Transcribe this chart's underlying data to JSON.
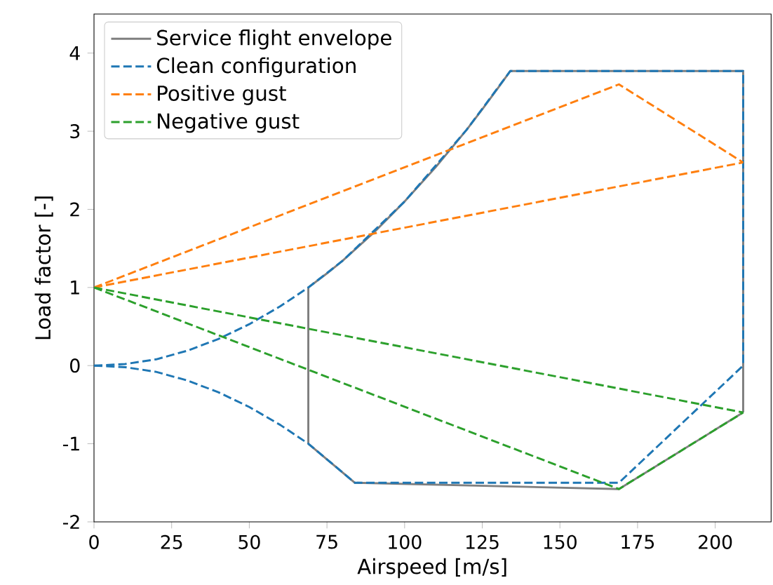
{
  "chart_data": {
    "type": "line",
    "xlabel": "Airspeed [m/s]",
    "ylabel": "Load factor [-]",
    "xlim": [
      0,
      218
    ],
    "ylim": [
      -2,
      4.5
    ],
    "xticks": [
      0,
      25,
      50,
      75,
      100,
      125,
      150,
      175,
      200
    ],
    "yticks": [
      -2,
      -1,
      0,
      1,
      2,
      3,
      4
    ],
    "grid": false,
    "legend": "top left",
    "marker": "none",
    "series": [
      {
        "name": "Service flight envelope",
        "color": "#7f7f7f",
        "line_style": "solid",
        "x": [
          69,
          69,
          75,
          80,
          85,
          90,
          95,
          100,
          105,
          110,
          115,
          120,
          125,
          130,
          134,
          209,
          209
        ],
        "values": [
          -1,
          1,
          1.18,
          1.34,
          1.52,
          1.7,
          1.9,
          2.1,
          2.32,
          2.54,
          2.78,
          3.02,
          3.28,
          3.55,
          3.77,
          3.77,
          -0.6
        ]
      },
      {
        "color": "#7f7f7f",
        "line_style": "solid",
        "x": [
          69,
          84,
          169,
          209
        ],
        "values": [
          -1,
          -1.5,
          -1.58,
          -0.6
        ]
      },
      {
        "name": "Clean configuration",
        "color": "#1f77b4",
        "line_style": "dashed",
        "x": [
          0,
          10,
          20,
          30,
          40,
          50,
          60,
          69,
          80,
          100,
          120,
          134,
          209,
          209
        ],
        "values": [
          0,
          0.02,
          0.08,
          0.19,
          0.34,
          0.53,
          0.76,
          1,
          1.34,
          2.1,
          3.02,
          3.77,
          3.77,
          0
        ]
      },
      {
        "color": "#1f77b4",
        "line_style": "dashed",
        "x": [
          0,
          10,
          20,
          30,
          40,
          50,
          60,
          69,
          84,
          169,
          209
        ],
        "values": [
          0,
          -0.02,
          -0.08,
          -0.19,
          -0.34,
          -0.53,
          -0.76,
          -1,
          -1.5,
          -1.5,
          0
        ]
      },
      {
        "name": "Positive gust",
        "color": "#ff7f0e",
        "line_style": "dashed",
        "x": [
          0,
          169,
          209
        ],
        "values": [
          1,
          3.6,
          2.6
        ]
      },
      {
        "color": "#ff7f0e",
        "line_style": "dashed",
        "x": [
          0,
          209
        ],
        "values": [
          1,
          2.6
        ]
      },
      {
        "name": "Negative gust",
        "color": "#2ca02c",
        "line_style": "dashed",
        "x": [
          0,
          169,
          209
        ],
        "values": [
          1,
          -1.58,
          -0.6
        ]
      },
      {
        "color": "#2ca02c",
        "line_style": "dashed",
        "x": [
          0,
          209
        ],
        "values": [
          1,
          -0.6
        ]
      }
    ]
  }
}
